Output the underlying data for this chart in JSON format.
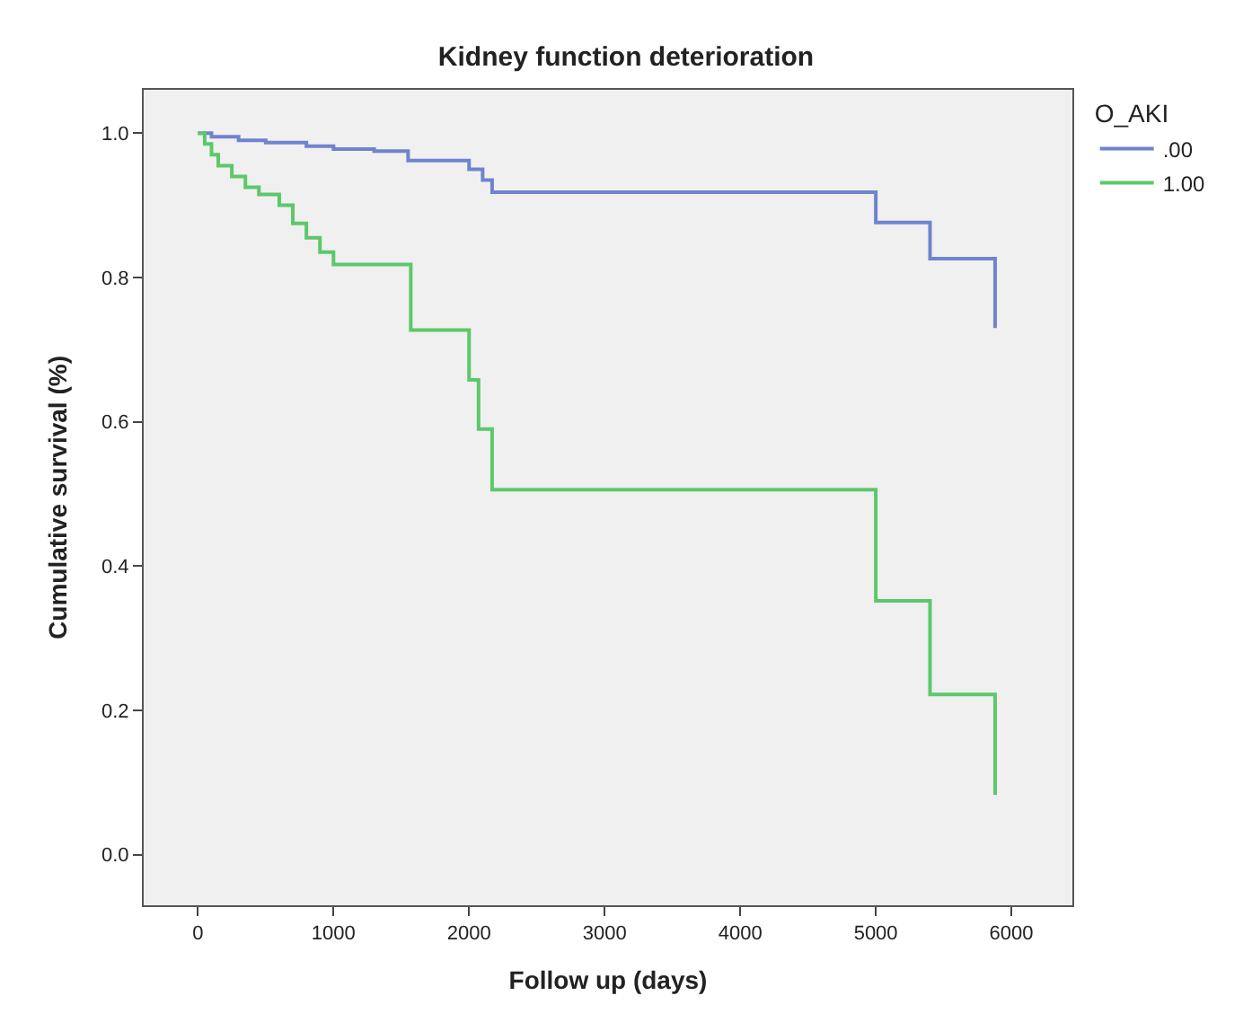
{
  "chart_data": {
    "type": "step",
    "title": "Kidney function deterioration",
    "xlabel": "Follow up (days)",
    "ylabel": "Cumulative survival (%)",
    "legend_title": "O_AKI",
    "legend": "top right",
    "grid": false,
    "marker": "none",
    "line_style": "solid",
    "xlim": [
      -400,
      6450
    ],
    "xticks": [
      0,
      1000,
      2000,
      3000,
      4000,
      5000,
      6000
    ],
    "ylim": [
      -0.07,
      1.06
    ],
    "yticks": [
      {
        "value": 0,
        "label": "0.0"
      },
      {
        "value": 0.2,
        "label": "0.2"
      },
      {
        "value": 0.4,
        "label": "0.4"
      },
      {
        "value": 0.6,
        "label": "0.6"
      },
      {
        "value": 0.8,
        "label": "0.8"
      },
      {
        "value": 1,
        "label": "1.0"
      }
    ],
    "series": [
      {
        "name": ".00",
        "color": "#7083cf",
        "x": [
          0,
          100,
          300,
          500,
          800,
          1000,
          1300,
          1550,
          2000,
          2100,
          2170,
          5000,
          5400,
          5880,
          5880
        ],
        "values": [
          1.0,
          0.995,
          0.99,
          0.987,
          0.982,
          0.978,
          0.975,
          0.962,
          0.95,
          0.935,
          0.918,
          0.876,
          0.826,
          0.826,
          0.73
        ]
      },
      {
        "name": "1.00",
        "color": "#5cc86a",
        "x": [
          0,
          50,
          100,
          150,
          250,
          350,
          450,
          600,
          700,
          800,
          900,
          1000,
          1570,
          2000,
          2070,
          2170,
          5000,
          5400,
          5880,
          5880
        ],
        "values": [
          1.0,
          0.985,
          0.97,
          0.955,
          0.94,
          0.925,
          0.915,
          0.9,
          0.875,
          0.855,
          0.835,
          0.818,
          0.727,
          0.658,
          0.59,
          0.506,
          0.352,
          0.222,
          0.222,
          0.083
        ]
      }
    ]
  }
}
